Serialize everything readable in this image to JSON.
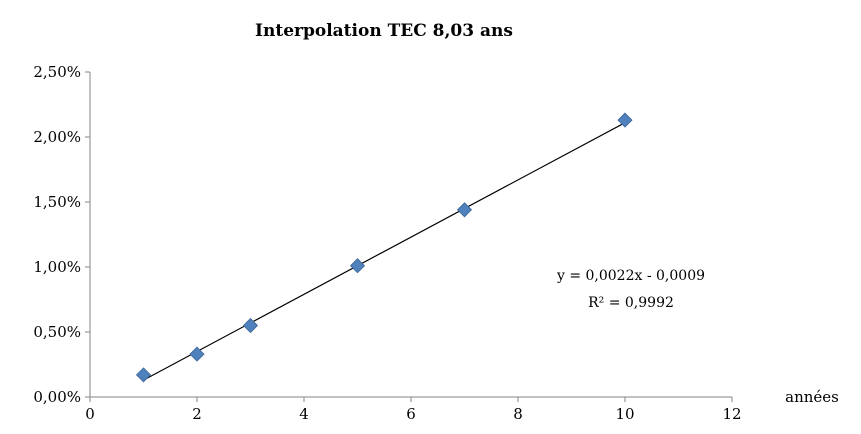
{
  "chart_data": {
    "type": "scatter",
    "title": "Interpolation TEC 8,03 ans",
    "xlabel": "années",
    "ylabel": "",
    "xlim": [
      0,
      12
    ],
    "ylim": [
      0,
      0.025
    ],
    "x_ticks": [
      0,
      2,
      4,
      6,
      8,
      10,
      12
    ],
    "x_tick_labels": [
      "0",
      "2",
      "4",
      "6",
      "8",
      "10",
      "12"
    ],
    "y_ticks": [
      0,
      0.005,
      0.01,
      0.015,
      0.02,
      0.025
    ],
    "y_tick_labels": [
      "0,00%",
      "0,50%",
      "1,00%",
      "1,50%",
      "2,00%",
      "2,50%"
    ],
    "grid": false,
    "legend": "none",
    "series": [
      {
        "marker": "diamond",
        "color": "#4F81BD",
        "x": [
          1,
          2,
          3,
          5,
          7,
          10
        ],
        "y": [
          0.0017,
          0.0033,
          0.0055,
          0.0101,
          0.0144,
          0.0213
        ]
      }
    ],
    "trendline": {
      "type": "linear",
      "slope": 0.0022,
      "intercept": -0.0009,
      "x_range": [
        1,
        10
      ],
      "color": "#000000",
      "equation_label": "y = 0,0022x - 0,0009",
      "r2_label": "R² = 0,9992"
    }
  }
}
